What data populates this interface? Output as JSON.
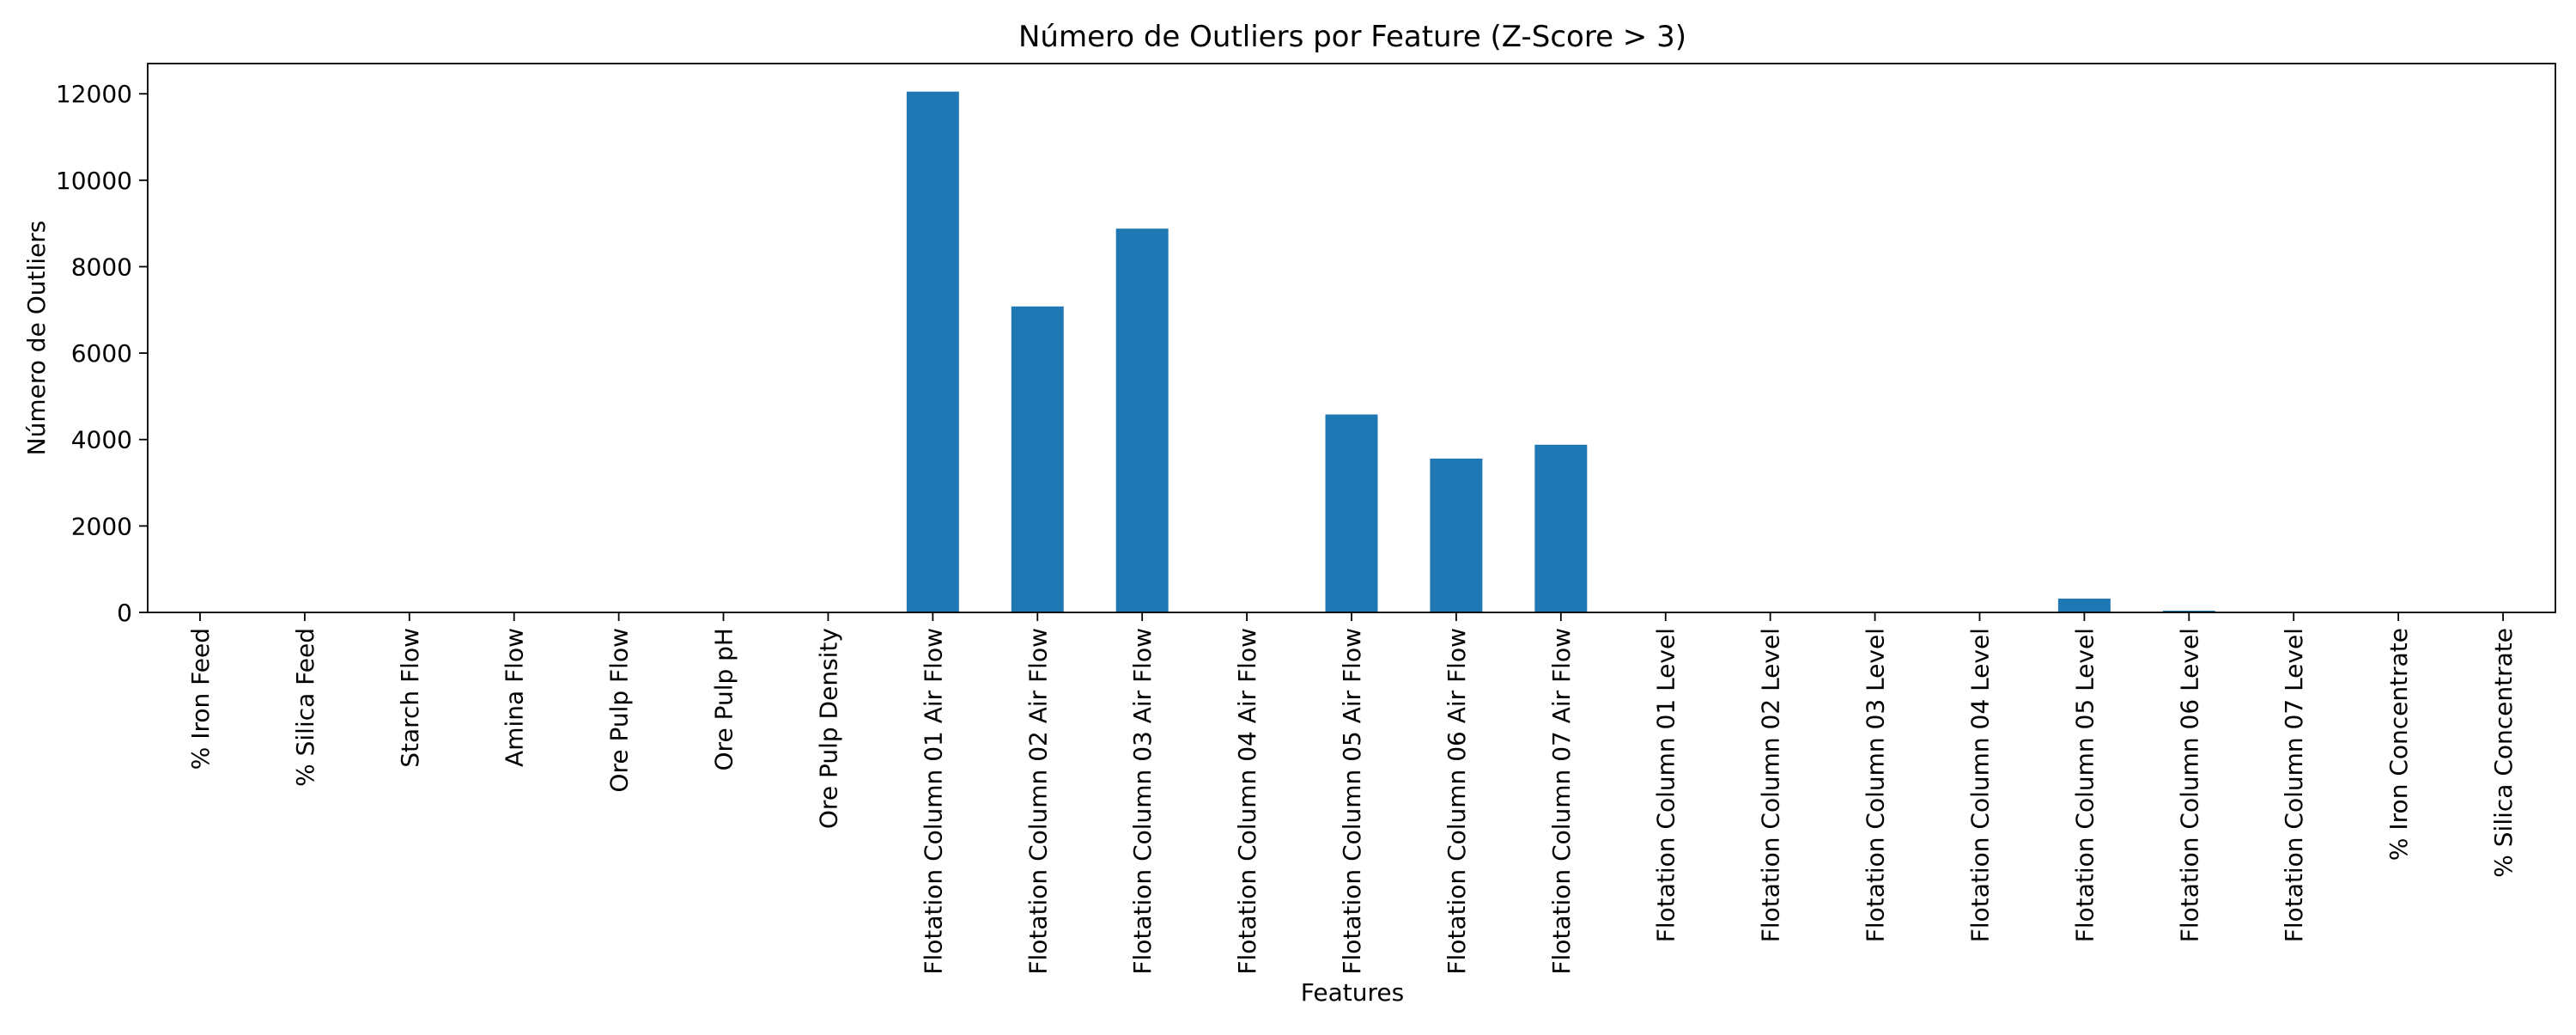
{
  "chart_data": {
    "type": "bar",
    "title": "Número de Outliers por Feature (Z-Score > 3)",
    "xlabel": "Features",
    "ylabel": "Número de Outliers",
    "ylim": [
      0,
      12700
    ],
    "yticks": [
      0,
      2000,
      4000,
      6000,
      8000,
      10000,
      12000
    ],
    "ytick_labels": [
      "0",
      "2000",
      "4000",
      "6000",
      "8000",
      "10000",
      "12000"
    ],
    "grid": false,
    "legend": "none",
    "bar_color": "#1f77b4",
    "categories": [
      "% Iron Feed",
      "% Silica Feed",
      "Starch Flow",
      "Amina Flow",
      "Ore Pulp Flow",
      "Ore Pulp pH",
      "Ore Pulp Density",
      "Flotation Column 01 Air Flow",
      "Flotation Column 02 Air Flow",
      "Flotation Column 03 Air Flow",
      "Flotation Column 04 Air Flow",
      "Flotation Column 05 Air Flow",
      "Flotation Column 06 Air Flow",
      "Flotation Column 07 Air Flow",
      "Flotation Column 01 Level",
      "Flotation Column 02 Level",
      "Flotation Column 03 Level",
      "Flotation Column 04 Level",
      "Flotation Column 05 Level",
      "Flotation Column 06 Level",
      "Flotation Column 07 Level",
      "% Iron Concentrate",
      "% Silica Concentrate"
    ],
    "values": [
      0,
      0,
      0,
      0,
      0,
      0,
      0,
      12050,
      7080,
      8880,
      0,
      4580,
      3560,
      3880,
      0,
      0,
      0,
      0,
      320,
      40,
      0,
      0,
      0
    ]
  }
}
